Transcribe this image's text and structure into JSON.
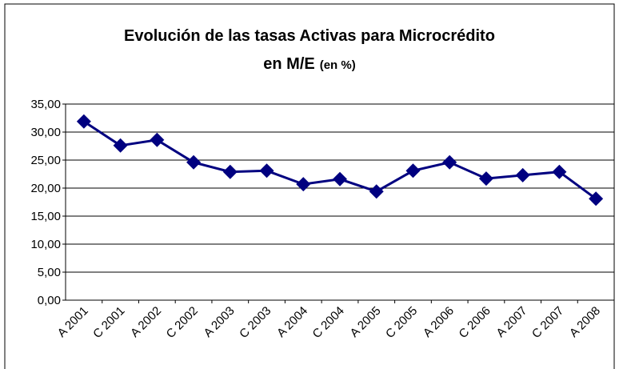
{
  "chart_data": {
    "type": "line",
    "title": [
      "Evolución de las tasas Activas para Microcrédito",
      "en M/E"
    ],
    "title_unit": "(en %)",
    "categories": [
      "A 2001",
      "C 2001",
      "A 2002",
      "C 2002",
      "A 2003",
      "C 2003",
      "A 2004",
      "C 2004",
      "A 2005",
      "C 2005",
      "A 2006",
      "C 2006",
      "A 2007",
      "C 2007",
      "A 2008"
    ],
    "values": [
      31.9,
      27.6,
      28.6,
      24.6,
      22.9,
      23.1,
      20.7,
      21.6,
      19.4,
      23.1,
      24.6,
      21.7,
      22.3,
      22.9,
      18.1
    ],
    "color": "#000080",
    "ylim": [
      0,
      35
    ],
    "yticks": [
      {
        "value": 0,
        "label": "0,00"
      },
      {
        "value": 5,
        "label": "5,00"
      },
      {
        "value": 10,
        "label": "10,00"
      },
      {
        "value": 15,
        "label": "15,00"
      },
      {
        "value": 20,
        "label": "20,00"
      },
      {
        "value": 25,
        "label": "25,00"
      },
      {
        "value": 30,
        "label": "30,00"
      },
      {
        "value": 35,
        "label": "35,00"
      }
    ],
    "grid": true
  }
}
